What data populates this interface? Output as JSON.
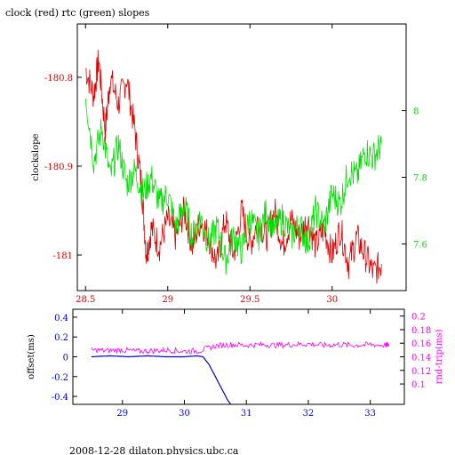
{
  "title": "clock (red) rtc (green) slopes",
  "footer": "2008-12-28  dilaton.physics.ubc.ca",
  "colors": {
    "clock": "#dd0000",
    "rtc": "#00e000",
    "offset": "#0000cc",
    "rndtrip": "#ff00ff",
    "axis": "#000000"
  },
  "chart_data": [
    {
      "type": "line",
      "title": "clock (red) rtc (green) slopes",
      "xlabel": "",
      "ylabel": "clockslope",
      "y2label": "",
      "xlim": [
        28.45,
        30.45
      ],
      "ylim": [
        -181.04,
        -180.74
      ],
      "y2lim": [
        7.46,
        8.26
      ],
      "x_ticks": [
        "28.5",
        "29",
        "29.5",
        "30"
      ],
      "x_tick_values": [
        28.5,
        29.0,
        29.5,
        30.0
      ],
      "y_ticks": [
        "-180.8",
        "-180.9",
        "-181"
      ],
      "y_tick_values": [
        -180.8,
        -180.9,
        -181.0
      ],
      "y2_ticks": [
        "8",
        "7.8",
        "7.6"
      ],
      "y2_tick_values": [
        8.0,
        7.8,
        7.6
      ],
      "series": [
        {
          "axis": "left",
          "color": "#dd0000",
          "x": [
            28.5,
            28.55,
            28.58,
            28.62,
            28.65,
            28.7,
            28.75,
            28.8,
            28.84,
            28.87,
            28.9,
            28.95,
            29.0,
            29.05,
            29.1,
            29.15,
            29.2,
            29.25,
            29.3,
            29.35,
            29.4,
            29.45,
            29.5,
            29.55,
            29.6,
            29.65,
            29.7,
            29.75,
            29.8,
            29.85,
            29.9,
            29.95,
            30.0,
            30.05,
            30.1,
            30.15,
            30.2,
            30.25,
            30.3
          ],
          "values": [
            -180.79,
            -180.82,
            -180.78,
            -180.86,
            -180.8,
            -180.83,
            -180.8,
            -180.86,
            -180.92,
            -181.0,
            -180.97,
            -180.99,
            -180.96,
            -180.98,
            -180.95,
            -180.99,
            -180.96,
            -180.98,
            -181.01,
            -180.96,
            -181.0,
            -180.95,
            -180.99,
            -180.96,
            -180.98,
            -180.95,
            -180.99,
            -180.96,
            -180.98,
            -180.96,
            -180.99,
            -180.97,
            -181.0,
            -180.97,
            -181.01,
            -180.98,
            -181.0,
            -181.02,
            -181.01
          ]
        },
        {
          "axis": "right",
          "color": "#00e000",
          "x": [
            28.5,
            28.55,
            28.6,
            28.65,
            28.7,
            28.75,
            28.8,
            28.85,
            28.9,
            28.95,
            29.0,
            29.05,
            29.1,
            29.15,
            29.2,
            29.25,
            29.3,
            29.35,
            29.4,
            29.45,
            29.5,
            29.55,
            29.6,
            29.65,
            29.7,
            29.75,
            29.8,
            29.85,
            29.9,
            29.95,
            30.0,
            30.05,
            30.1,
            30.15,
            30.2,
            30.25,
            30.3
          ],
          "values": [
            8.05,
            7.85,
            7.95,
            7.8,
            7.9,
            7.78,
            7.82,
            7.75,
            7.8,
            7.72,
            7.75,
            7.65,
            7.72,
            7.62,
            7.68,
            7.6,
            7.65,
            7.55,
            7.62,
            7.58,
            7.68,
            7.62,
            7.7,
            7.64,
            7.68,
            7.62,
            7.66,
            7.6,
            7.7,
            7.65,
            7.75,
            7.72,
            7.82,
            7.8,
            7.88,
            7.86,
            7.9
          ]
        }
      ]
    },
    {
      "type": "line",
      "title": "",
      "xlabel": "",
      "ylabel": "offset(ms)",
      "y2label": "rnd-trip(ms)",
      "xlim": [
        28.2,
        33.55
      ],
      "ylim": [
        -0.48,
        0.48
      ],
      "y2lim": [
        0.07,
        0.21
      ],
      "x_ticks": [
        "29",
        "30",
        "31",
        "32",
        "33"
      ],
      "x_tick_values": [
        29,
        30,
        31,
        32,
        33
      ],
      "y_ticks": [
        "0.4",
        "0.2",
        "0",
        "-0.2",
        "-0.4"
      ],
      "y_tick_values": [
        0.4,
        0.2,
        0,
        -0.2,
        -0.4
      ],
      "y2_ticks": [
        "0.2",
        "0.18",
        "0.16",
        "0.14",
        "0.12",
        "0.1"
      ],
      "y2_tick_values": [
        0.2,
        0.18,
        0.16,
        0.14,
        0.12,
        0.1
      ],
      "series": [
        {
          "axis": "left",
          "color": "#0000cc",
          "x": [
            28.5,
            28.8,
            29.1,
            29.4,
            29.7,
            30.0,
            30.2,
            30.3,
            30.4,
            30.5,
            30.6,
            30.7,
            30.75
          ],
          "values": [
            0.0,
            0.01,
            0.0,
            0.01,
            0.0,
            0.0,
            0.01,
            0.0,
            -0.08,
            -0.2,
            -0.32,
            -0.44,
            -0.48
          ]
        },
        {
          "axis": "right",
          "color": "#ff00ff",
          "x": [
            28.5,
            28.75,
            29.0,
            29.25,
            29.5,
            29.75,
            30.0,
            30.25,
            30.5,
            30.75,
            31.0,
            31.25,
            31.5,
            31.75,
            32.0,
            32.25,
            32.5,
            32.75,
            33.0,
            33.25,
            33.3
          ],
          "values": [
            0.15,
            0.149,
            0.15,
            0.148,
            0.149,
            0.15,
            0.148,
            0.149,
            0.156,
            0.158,
            0.157,
            0.158,
            0.157,
            0.158,
            0.159,
            0.157,
            0.158,
            0.157,
            0.158,
            0.157,
            0.158
          ]
        }
      ]
    }
  ]
}
